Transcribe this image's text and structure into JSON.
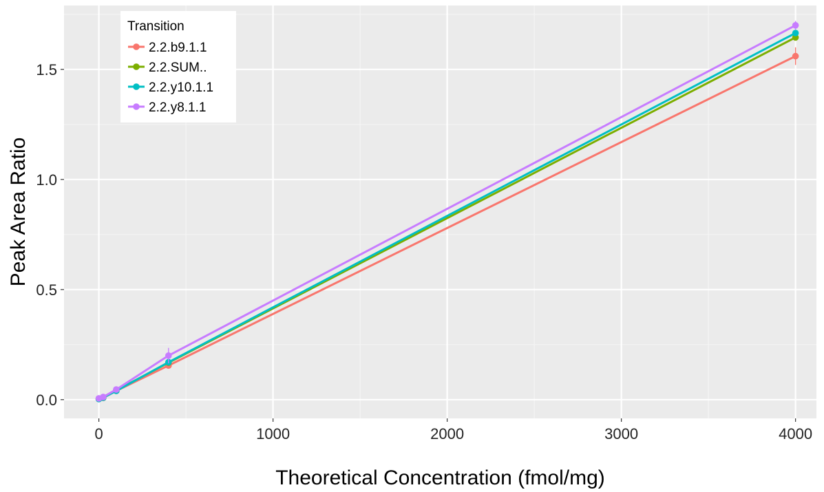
{
  "chart_data": {
    "type": "line",
    "xlabel": "Theoretical Concentration (fmol/mg)",
    "ylabel": "Peak Area Ratio",
    "xlim": [
      -200,
      4120
    ],
    "ylim": [
      -0.085,
      1.79
    ],
    "x_ticks": [
      0,
      1000,
      2000,
      3000,
      4000
    ],
    "x_tick_labels": [
      "0",
      "1000",
      "2000",
      "3000",
      "4000"
    ],
    "y_ticks": [
      0.0,
      0.5,
      1.0,
      1.5
    ],
    "y_tick_labels": [
      "0.0",
      "0.5",
      "1.0",
      "1.5"
    ],
    "grid": true,
    "legend": {
      "title": "Transition",
      "position": "top-left"
    },
    "x": [
      0,
      25,
      100,
      400,
      4000
    ],
    "series": [
      {
        "name": "2.2.b9.1.1",
        "color": "#F8766D",
        "values": [
          0.003,
          0.008,
          0.04,
          0.155,
          1.56
        ],
        "error": [
          0,
          0,
          0.004,
          0.01,
          0.04
        ]
      },
      {
        "name": "2.2.SUM..",
        "color": "#7CAE00",
        "values": [
          0.004,
          0.009,
          0.042,
          0.168,
          1.645
        ],
        "error": [
          0,
          0,
          0,
          0,
          0
        ]
      },
      {
        "name": "2.2.y10.1.1",
        "color": "#00BFC4",
        "values": [
          0.003,
          0.009,
          0.04,
          0.17,
          1.665
        ],
        "error": [
          0,
          0,
          0,
          0,
          0
        ]
      },
      {
        "name": "2.2.y8.1.1",
        "color": "#C77CFF",
        "values": [
          0.006,
          0.012,
          0.046,
          0.2,
          1.7
        ],
        "error": [
          0,
          0,
          0.005,
          0.035,
          0.02
        ]
      }
    ]
  }
}
